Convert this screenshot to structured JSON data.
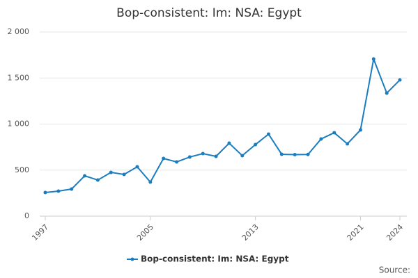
{
  "chart_data": {
    "type": "line",
    "title": "Bop-consistent: Im: NSA: Egypt",
    "x": [
      1997,
      1998,
      1999,
      2000,
      2001,
      2002,
      2003,
      2004,
      2005,
      2006,
      2007,
      2008,
      2009,
      2010,
      2011,
      2012,
      2013,
      2014,
      2015,
      2016,
      2017,
      2018,
      2019,
      2020,
      2021,
      2022,
      2023,
      2024
    ],
    "series": [
      {
        "name": "Bop-consistent: Im: NSA: Egypt",
        "color": "#1a7dbf",
        "values": [
          257,
          272,
          294,
          438,
          392,
          475,
          453,
          536,
          370,
          626,
          589,
          642,
          679,
          649,
          792,
          657,
          777,
          891,
          672,
          668,
          670,
          838,
          906,
          785,
          936,
          1706,
          1336,
          1479
        ]
      }
    ],
    "xlim": [
      1997,
      2024
    ],
    "xticks": [
      1997,
      2005,
      2013,
      2021,
      2024
    ],
    "ylim": [
      0,
      2000
    ],
    "yticks": [
      0,
      500,
      {
        "value": 1000,
        "label": "1 000"
      },
      {
        "value": 1500,
        "label": "1 500"
      },
      {
        "value": 2000,
        "label": "2 000"
      }
    ],
    "grid": true,
    "legend": "bottom",
    "source": "Source:"
  }
}
